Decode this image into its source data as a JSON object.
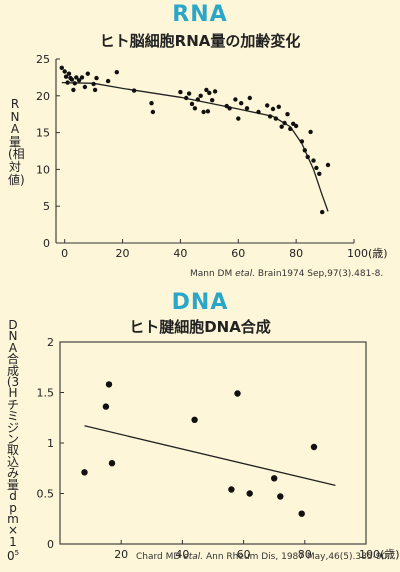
{
  "rna_panel": {
    "big_title": "RNA",
    "title": "ヒト脳細胞RNA量の加齢変化",
    "ylabel": "RNA量(相対値)",
    "source_prefix": "Mann DM ",
    "source_etal": "etal.",
    "source_suffix": " Brain1974 Sep,97(3).481-8."
  },
  "dna_panel": {
    "big_title": "DNA",
    "title": "ヒト腱細胞DNA合成",
    "ylabel": "DNA合成(3Hチミジン取込み量dpm×10",
    "ylabel_sup": "5",
    "source_prefix": "Chard MD ",
    "source_etal": "etal.",
    "source_suffix": " Ann Rheum Dis, 1987 May,46(5).385-90."
  },
  "chart_data": [
    {
      "type": "scatter",
      "title": "ヒト脳細胞RNA量の加齢変化",
      "xlabel": "",
      "ylabel": "RNA量(相対値)",
      "xlim": [
        -3,
        100
      ],
      "ylim": [
        0,
        25
      ],
      "xticks": [
        0,
        20,
        40,
        60,
        80,
        100
      ],
      "xtick_labels": [
        "0",
        "20",
        "40",
        "60",
        "80",
        "100(歳)"
      ],
      "yticks": [
        0,
        5,
        10,
        15,
        20,
        25
      ],
      "grid": false,
      "series": [
        {
          "points": [
            [
              -1,
              23.8
            ],
            [
              0,
              23.3
            ],
            [
              0.5,
              22.6
            ],
            [
              1,
              21.8
            ],
            [
              1.5,
              23
            ],
            [
              2,
              22.4
            ],
            [
              2.5,
              22.2
            ],
            [
              3,
              20.8
            ],
            [
              3.5,
              21.7
            ],
            [
              4,
              22.5
            ],
            [
              5,
              22.1
            ],
            [
              6,
              22.5
            ],
            [
              7,
              21.2
            ],
            [
              8,
              23
            ],
            [
              10,
              21.6
            ],
            [
              10.5,
              20.8
            ],
            [
              11,
              22.4
            ],
            [
              15,
              22
            ],
            [
              18,
              23.2
            ],
            [
              24,
              20.7
            ],
            [
              30,
              19
            ],
            [
              30.5,
              17.8
            ],
            [
              40,
              20.5
            ],
            [
              42,
              19.7
            ],
            [
              43,
              20.3
            ],
            [
              44,
              18.9
            ],
            [
              45,
              18.3
            ],
            [
              46,
              19.5
            ],
            [
              47,
              20
            ],
            [
              48,
              17.8
            ],
            [
              49,
              20.8
            ],
            [
              49.5,
              17.9
            ],
            [
              50,
              20.4
            ],
            [
              51,
              19.4
            ],
            [
              52,
              20.6
            ],
            [
              56,
              18.6
            ],
            [
              57,
              18.3
            ],
            [
              59,
              19.5
            ],
            [
              60,
              16.9
            ],
            [
              61,
              19
            ],
            [
              63,
              18.3
            ],
            [
              64,
              19.7
            ],
            [
              67,
              17.8
            ],
            [
              70,
              18.7
            ],
            [
              71,
              17.2
            ],
            [
              72,
              18.2
            ],
            [
              73,
              16.9
            ],
            [
              74,
              18.5
            ],
            [
              75,
              15.8
            ],
            [
              76,
              16.3
            ],
            [
              77,
              17.5
            ],
            [
              78,
              15.5
            ],
            [
              79,
              16.2
            ],
            [
              80,
              15.9
            ],
            [
              82,
              13.8
            ],
            [
              83,
              12.6
            ],
            [
              84,
              11.7
            ],
            [
              85,
              15.1
            ],
            [
              86,
              11.2
            ],
            [
              87,
              10.2
            ],
            [
              88,
              9.4
            ],
            [
              89,
              4.2
            ],
            [
              91,
              10.6
            ]
          ]
        }
      ],
      "trend": [
        [
          -1,
          21.8
        ],
        [
          10,
          21.7
        ],
        [
          20,
          21
        ],
        [
          40,
          19.8
        ],
        [
          60,
          18.2
        ],
        [
          72,
          17.2
        ],
        [
          78,
          15.8
        ],
        [
          82,
          13.5
        ],
        [
          86,
          10
        ],
        [
          89,
          6.5
        ],
        [
          91,
          4.3
        ]
      ]
    },
    {
      "type": "scatter",
      "title": "ヒト腱細胞DNA合成",
      "xlabel": "",
      "ylabel": "DNA合成(3Hチミジン取込み量dpm×10⁵)",
      "xlim": [
        0,
        100
      ],
      "ylim": [
        0,
        2
      ],
      "xticks": [
        20,
        40,
        60,
        80,
        100
      ],
      "xtick_labels": [
        "20",
        "40",
        "60",
        "80",
        "100(歳)"
      ],
      "yticks": [
        0,
        0.5,
        1,
        1.5,
        2
      ],
      "ytick_labels": [
        "0",
        "0.5",
        "1",
        "1.5",
        "2"
      ],
      "grid": false,
      "series": [
        {
          "points": [
            [
              8,
              0.71
            ],
            [
              15,
              1.36
            ],
            [
              16,
              1.58
            ],
            [
              17,
              0.8
            ],
            [
              44,
              1.23
            ],
            [
              56,
              0.54
            ],
            [
              58,
              1.49
            ],
            [
              62,
              0.5
            ],
            [
              70,
              0.65
            ],
            [
              72,
              0.47
            ],
            [
              79,
              0.3
            ],
            [
              83,
              0.96
            ]
          ]
        }
      ],
      "trend": [
        [
          8,
          1.17
        ],
        [
          90,
          0.58
        ]
      ]
    }
  ]
}
